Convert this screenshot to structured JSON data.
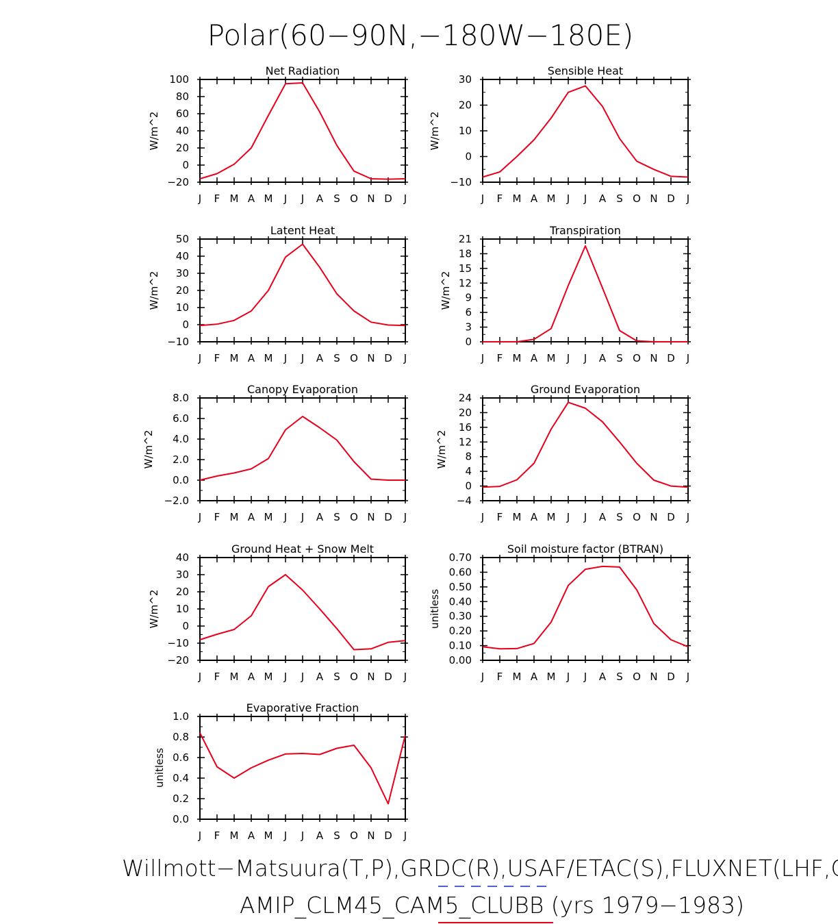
{
  "figure": {
    "title": "Polar(60−90N,−180W−180E)",
    "footer_line1": "Willmott−Matsuura(T,P),GRDC(R),USAF/ETAC(S),FLUXNET(LHF,GF",
    "footer_line2": "AMIP_CLM45_CAM5_CLUBB (yrs 1979−1983)",
    "line_color": "#e8001c",
    "dash_color": "#4a5cff",
    "underline_color": "#e8001c"
  },
  "chart_data": [
    {
      "type": "line",
      "title": "Net Radiation",
      "ylabel": "W/m^2",
      "categories": [
        "J",
        "F",
        "M",
        "A",
        "M",
        "J",
        "J",
        "A",
        "S",
        "O",
        "N",
        "D",
        "J"
      ],
      "ylim": [
        -20,
        100
      ],
      "yticks": [
        -20,
        0,
        20,
        40,
        60,
        80,
        100
      ],
      "ytick_labels": [
        "−20",
        "0",
        "20",
        "40",
        "60",
        "80",
        "100"
      ],
      "values": [
        -16,
        -10,
        1,
        20,
        58,
        95,
        96,
        62,
        23,
        -7,
        -16,
        -16.5,
        -16
      ]
    },
    {
      "type": "line",
      "title": "Sensible Heat",
      "ylabel": "W/m^2",
      "categories": [
        "J",
        "F",
        "M",
        "A",
        "M",
        "J",
        "J",
        "A",
        "S",
        "O",
        "N",
        "D",
        "J"
      ],
      "ylim": [
        -10,
        30
      ],
      "yticks": [
        -10,
        0,
        10,
        20,
        30
      ],
      "ytick_labels": [
        "−10",
        "0",
        "10",
        "20",
        "30"
      ],
      "values": [
        -8,
        -6,
        0,
        6.5,
        15,
        25,
        27.5,
        19.5,
        7,
        -1.8,
        -5,
        -7.7,
        -8
      ]
    },
    {
      "type": "line",
      "title": "Latent Heat",
      "ylabel": "W/m^2",
      "categories": [
        "J",
        "F",
        "M",
        "A",
        "M",
        "J",
        "J",
        "A",
        "S",
        "O",
        "N",
        "D",
        "J"
      ],
      "ylim": [
        -10,
        50
      ],
      "yticks": [
        -10,
        0,
        10,
        20,
        30,
        40,
        50
      ],
      "ytick_labels": [
        "−10",
        "0",
        "10",
        "20",
        "30",
        "40",
        "50"
      ],
      "values": [
        -0.5,
        0.3,
        2.5,
        8,
        20,
        39.5,
        47,
        33.5,
        18,
        8,
        1.5,
        -0.2,
        -0.5
      ]
    },
    {
      "type": "line",
      "title": "Transpiration",
      "ylabel": "W/m^2",
      "categories": [
        "J",
        "F",
        "M",
        "A",
        "M",
        "J",
        "J",
        "A",
        "S",
        "O",
        "N",
        "D",
        "J"
      ],
      "ylim": [
        0,
        21
      ],
      "yticks": [
        0,
        3,
        6,
        9,
        12,
        15,
        18,
        21
      ],
      "ytick_labels": [
        "0",
        "3",
        "6",
        "9",
        "12",
        "15",
        "18",
        "21"
      ],
      "values": [
        0,
        0,
        0,
        0.5,
        2.7,
        11.5,
        19.6,
        11,
        2.3,
        0.2,
        0,
        0,
        0
      ]
    },
    {
      "type": "line",
      "title": "Canopy Evaporation",
      "ylabel": "W/m^2",
      "categories": [
        "J",
        "F",
        "M",
        "A",
        "M",
        "J",
        "J",
        "A",
        "S",
        "O",
        "N",
        "D",
        "J"
      ],
      "ylim": [
        -2,
        8
      ],
      "yticks": [
        -2,
        0,
        2,
        4,
        6,
        8
      ],
      "ytick_labels": [
        "−2.0",
        "0.0",
        "2.0",
        "4.0",
        "6.0",
        "8.0"
      ],
      "values": [
        0,
        0.4,
        0.7,
        1.1,
        2.1,
        4.9,
        6.2,
        5.1,
        3.9,
        1.8,
        0.1,
        0,
        0
      ]
    },
    {
      "type": "line",
      "title": "Ground Evaporation",
      "ylabel": "W/m^2",
      "categories": [
        "J",
        "F",
        "M",
        "A",
        "M",
        "J",
        "J",
        "A",
        "S",
        "O",
        "N",
        "D",
        "J"
      ],
      "ylim": [
        -4,
        24
      ],
      "yticks": [
        -4,
        0,
        4,
        8,
        12,
        16,
        20,
        24
      ],
      "ytick_labels": [
        "−4",
        "0",
        "4",
        "8",
        "12",
        "16",
        "20",
        "24"
      ],
      "values": [
        -0.3,
        -0.1,
        1.7,
        6.2,
        15.5,
        22.8,
        21.2,
        17.5,
        12,
        6.2,
        1.6,
        0,
        -0.3
      ]
    },
    {
      "type": "line",
      "title": "Ground Heat + Snow Melt",
      "ylabel": "W/m^2",
      "categories": [
        "J",
        "F",
        "M",
        "A",
        "M",
        "J",
        "J",
        "A",
        "S",
        "O",
        "N",
        "D",
        "J"
      ],
      "ylim": [
        -20,
        40
      ],
      "yticks": [
        -20,
        -10,
        0,
        10,
        20,
        30,
        40
      ],
      "ytick_labels": [
        "−20",
        "−10",
        "0",
        "10",
        "20",
        "30",
        "40"
      ],
      "values": [
        -8,
        -4.8,
        -2,
        6,
        23,
        30,
        21,
        10,
        -1.5,
        -13.8,
        -13.3,
        -9.5,
        -8.5
      ]
    },
    {
      "type": "line",
      "title": "Soil moisture factor (BTRAN)",
      "ylabel": "unitless",
      "categories": [
        "J",
        "F",
        "M",
        "A",
        "M",
        "J",
        "J",
        "A",
        "S",
        "O",
        "N",
        "D",
        "J"
      ],
      "ylim": [
        0,
        0.7
      ],
      "yticks": [
        0,
        0.1,
        0.2,
        0.3,
        0.4,
        0.5,
        0.6,
        0.7
      ],
      "ytick_labels": [
        "0.00",
        "0.10",
        "0.20",
        "0.30",
        "0.40",
        "0.50",
        "0.60",
        "0.70"
      ],
      "values": [
        0.092,
        0.078,
        0.08,
        0.115,
        0.26,
        0.51,
        0.62,
        0.64,
        0.635,
        0.48,
        0.25,
        0.14,
        0.092
      ]
    },
    {
      "type": "line",
      "title": "Evaporative Fraction",
      "ylabel": "unitless",
      "categories": [
        "J",
        "F",
        "M",
        "A",
        "M",
        "J",
        "J",
        "A",
        "S",
        "O",
        "N",
        "D",
        "J"
      ],
      "ylim": [
        0,
        1
      ],
      "yticks": [
        0,
        0.2,
        0.4,
        0.6,
        0.8,
        1.0
      ],
      "ytick_labels": [
        "0.0",
        "0.2",
        "0.4",
        "0.6",
        "0.8",
        "1.0"
      ],
      "values": [
        0.84,
        0.51,
        0.4,
        0.5,
        0.575,
        0.635,
        0.64,
        0.63,
        0.69,
        0.72,
        0.5,
        0.15,
        0.82
      ]
    }
  ]
}
